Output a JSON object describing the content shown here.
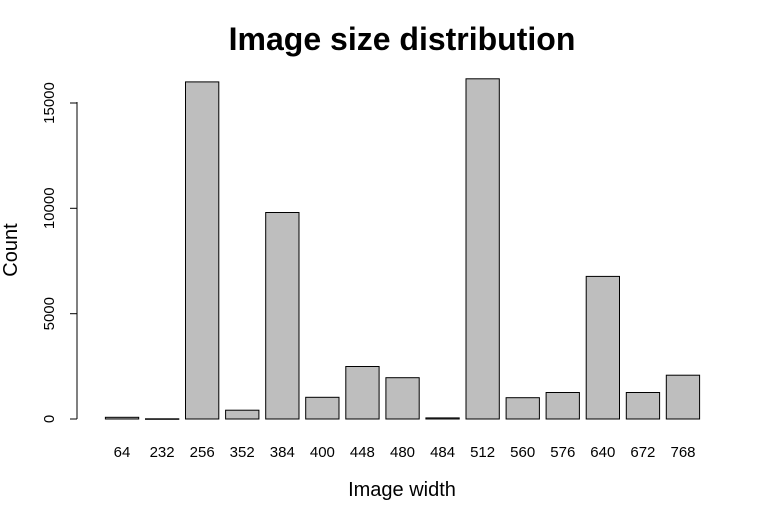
{
  "chart_data": {
    "type": "bar",
    "title": "Image size distribution",
    "xlabel": "Image width",
    "ylabel": "Count",
    "categories": [
      "64",
      "232",
      "256",
      "352",
      "384",
      "400",
      "448",
      "480",
      "484",
      "512",
      "560",
      "576",
      "640",
      "672",
      "768"
    ],
    "values": [
      80,
      10,
      16000,
      420,
      9800,
      1030,
      2490,
      1960,
      50,
      16150,
      1010,
      1260,
      6770,
      1260,
      2080
    ],
    "yticks": [
      "0",
      "5000",
      "10000",
      "15000"
    ],
    "ylim": [
      0,
      16150
    ],
    "grid": false,
    "bar_color": "#bebebe",
    "edge_color": "#000000"
  }
}
